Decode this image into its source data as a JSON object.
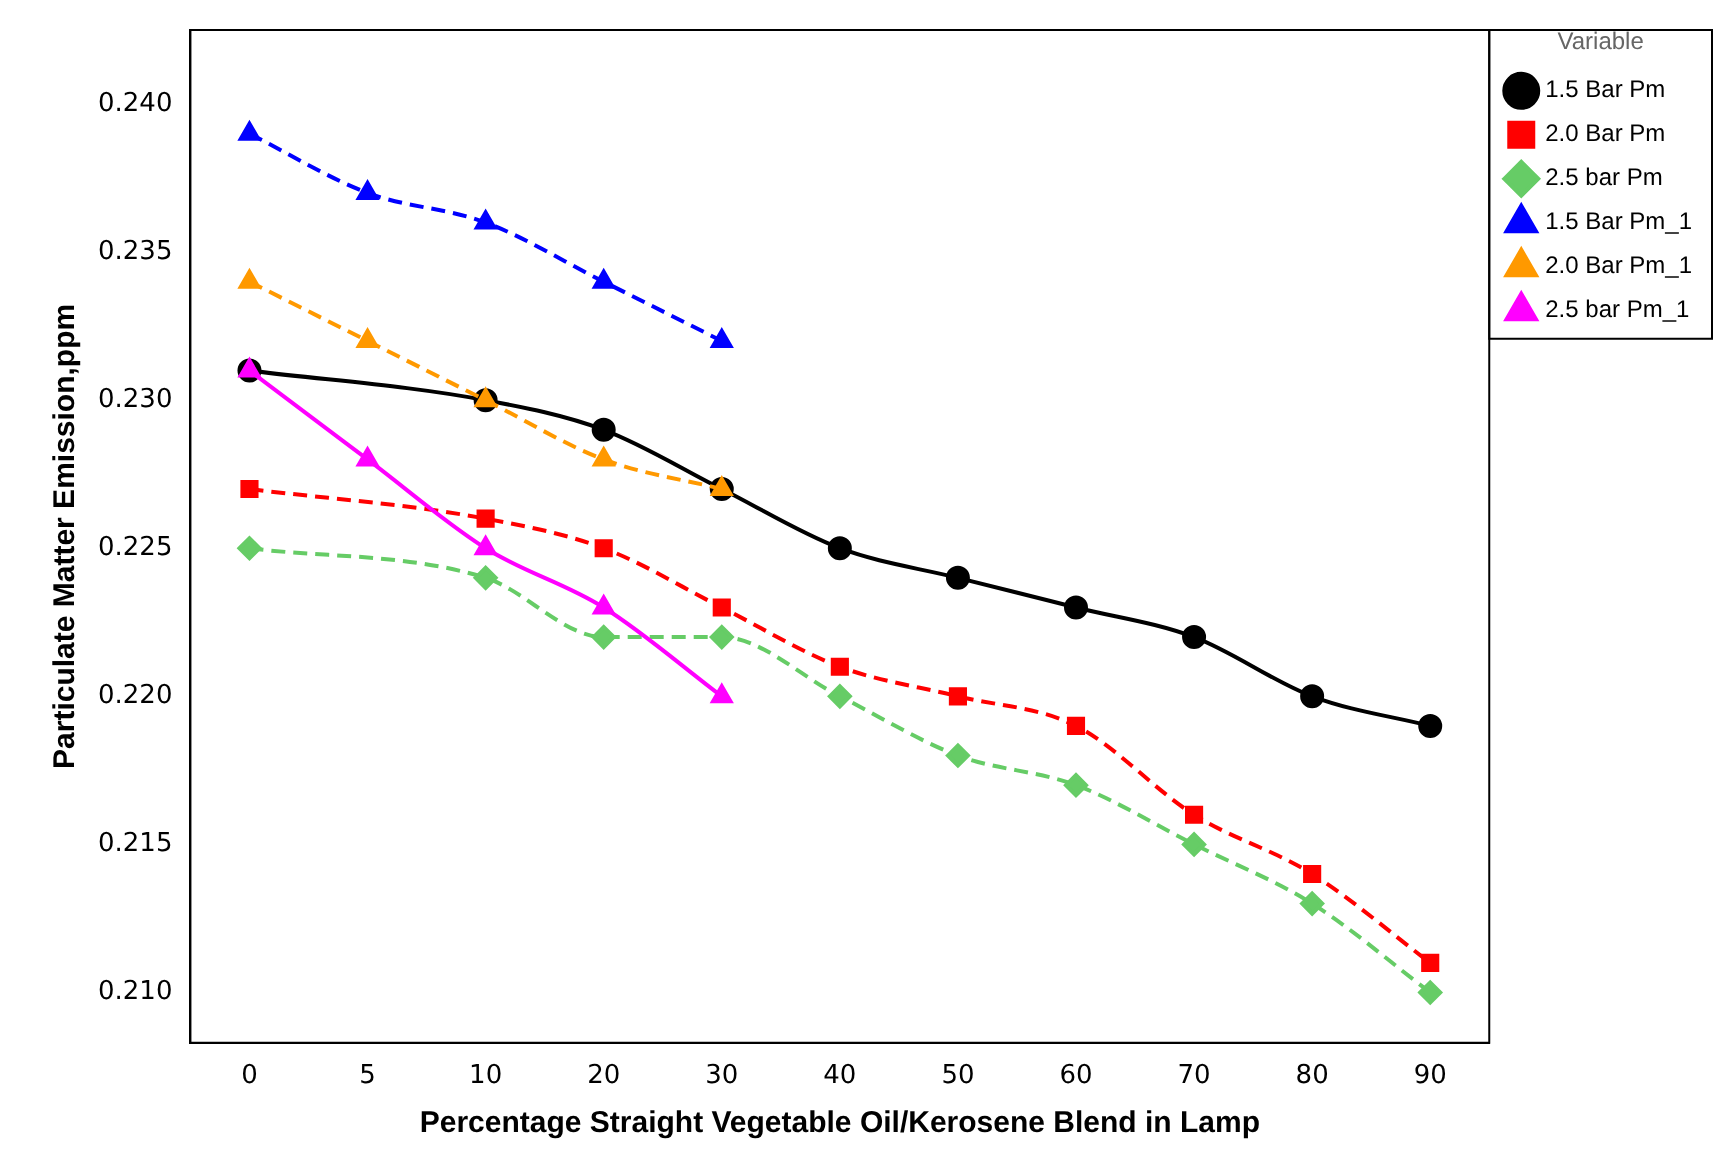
{
  "chart_data": {
    "type": "line",
    "xlabel": "Percentage Straight Vegetable Oil/Kerosene Blend in Lamp",
    "ylabel": "Particulate Matter Emission,ppm",
    "legend_title": "Variable",
    "legend": "right",
    "grid": false,
    "categories": [
      "0",
      "5",
      "10",
      "20",
      "30",
      "40",
      "50",
      "60",
      "70",
      "80",
      "90"
    ],
    "ylim": [
      0.2083,
      0.2425
    ],
    "yticks": [
      {
        "value": 0.21,
        "label": "0.210"
      },
      {
        "value": 0.215,
        "label": "0.215"
      },
      {
        "value": 0.22,
        "label": "0.220"
      },
      {
        "value": 0.225,
        "label": "0.225"
      },
      {
        "value": 0.23,
        "label": "0.230"
      },
      {
        "value": 0.235,
        "label": "0.235"
      },
      {
        "value": 0.24,
        "label": "0.240"
      }
    ],
    "series": [
      {
        "name": "1.5 Bar Pm",
        "color": "#000000",
        "marker": "circle",
        "line_style": "solid",
        "values": [
          0.231,
          null,
          0.23,
          0.229,
          0.227,
          0.225,
          0.224,
          0.223,
          0.222,
          0.22,
          0.219
        ]
      },
      {
        "name": "2.0 Bar Pm",
        "color": "#ff0000",
        "marker": "square",
        "line_style": "dashed",
        "values": [
          0.227,
          null,
          0.226,
          0.225,
          0.223,
          0.221,
          0.22,
          0.219,
          0.216,
          0.214,
          0.211
        ]
      },
      {
        "name": "2.5 bar Pm",
        "color": "#66cc66",
        "marker": "diamond",
        "line_style": "dashed",
        "values": [
          0.225,
          null,
          0.224,
          0.222,
          0.222,
          0.22,
          0.218,
          0.217,
          0.215,
          0.213,
          0.21
        ]
      },
      {
        "name": "1.5 Bar Pm_1",
        "color": "#0000ff",
        "marker": "triangle",
        "line_style": "dashed",
        "values": [
          0.239,
          0.237,
          0.236,
          0.234,
          0.232,
          null,
          null,
          null,
          null,
          null,
          null
        ]
      },
      {
        "name": "2.0 Bar Pm_1",
        "color": "#ff9900",
        "marker": "triangle",
        "line_style": "dashed",
        "values": [
          0.234,
          0.232,
          0.23,
          0.228,
          0.227,
          null,
          null,
          null,
          null,
          null,
          null
        ]
      },
      {
        "name": "2.5 bar Pm_1",
        "color": "#ff00ff",
        "marker": "triangle",
        "line_style": "solid",
        "values": [
          0.231,
          0.228,
          0.225,
          0.223,
          0.22,
          null,
          null,
          null,
          null,
          null,
          null
        ]
      }
    ]
  }
}
